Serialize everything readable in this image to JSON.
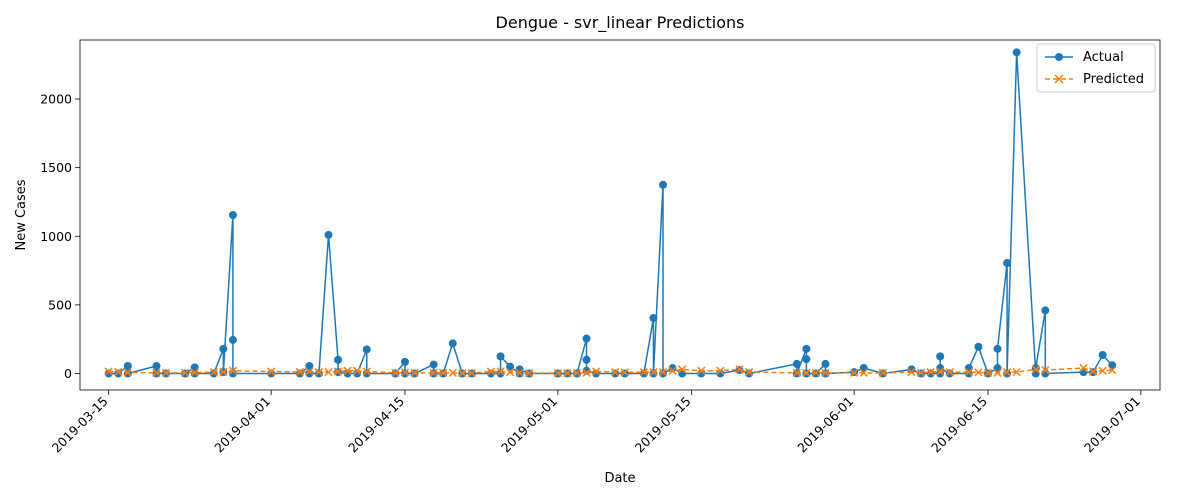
{
  "chart_data": {
    "type": "line",
    "title": "Dengue - svr_linear Predictions",
    "xlabel": "Date",
    "ylabel": "New Cases",
    "xlim": [
      "2019-03-12",
      "2019-07-03"
    ],
    "ylim": [
      -120,
      2430
    ],
    "x_ticks": [
      "2019-03-15",
      "2019-04-01",
      "2019-04-15",
      "2019-05-01",
      "2019-05-15",
      "2019-06-01",
      "2019-06-15",
      "2019-07-01"
    ],
    "y_ticks": [
      0,
      500,
      1000,
      1500,
      2000
    ],
    "legend_position": "top-right",
    "grid": false,
    "series": [
      {
        "name": "Actual",
        "color": "#1f77b4",
        "marker": "circle",
        "linestyle": "solid",
        "points": [
          [
            "2019-03-15",
            0
          ],
          [
            "2019-03-16",
            0
          ],
          [
            "2019-03-17",
            55
          ],
          [
            "2019-03-17",
            0
          ],
          [
            "2019-03-20",
            55
          ],
          [
            "2019-03-20",
            0
          ],
          [
            "2019-03-21",
            0
          ],
          [
            "2019-03-23",
            0
          ],
          [
            "2019-03-24",
            45
          ],
          [
            "2019-03-24",
            0
          ],
          [
            "2019-03-26",
            0
          ],
          [
            "2019-03-27",
            180
          ],
          [
            "2019-03-27",
            10
          ],
          [
            "2019-03-28",
            1155
          ],
          [
            "2019-03-28",
            245
          ],
          [
            "2019-03-28",
            0
          ],
          [
            "2019-04-01",
            0
          ],
          [
            "2019-04-04",
            0
          ],
          [
            "2019-04-05",
            55
          ],
          [
            "2019-04-05",
            0
          ],
          [
            "2019-04-06",
            0
          ],
          [
            "2019-04-07",
            1010
          ],
          [
            "2019-04-08",
            100
          ],
          [
            "2019-04-08",
            10
          ],
          [
            "2019-04-09",
            0
          ],
          [
            "2019-04-10",
            0
          ],
          [
            "2019-04-11",
            175
          ],
          [
            "2019-04-11",
            0
          ],
          [
            "2019-04-14",
            0
          ],
          [
            "2019-04-15",
            85
          ],
          [
            "2019-04-15",
            0
          ],
          [
            "2019-04-16",
            0
          ],
          [
            "2019-04-18",
            65
          ],
          [
            "2019-04-18",
            0
          ],
          [
            "2019-04-19",
            0
          ],
          [
            "2019-04-20",
            220
          ],
          [
            "2019-04-21",
            0
          ],
          [
            "2019-04-22",
            0
          ],
          [
            "2019-04-24",
            0
          ],
          [
            "2019-04-25",
            0
          ],
          [
            "2019-04-25",
            125
          ],
          [
            "2019-04-26",
            50
          ],
          [
            "2019-04-27",
            0
          ],
          [
            "2019-04-27",
            30
          ],
          [
            "2019-04-28",
            0
          ],
          [
            "2019-05-01",
            0
          ],
          [
            "2019-05-02",
            0
          ],
          [
            "2019-05-03",
            0
          ],
          [
            "2019-05-04",
            255
          ],
          [
            "2019-05-04",
            100
          ],
          [
            "2019-05-04",
            20
          ],
          [
            "2019-05-05",
            0
          ],
          [
            "2019-05-07",
            0
          ],
          [
            "2019-05-08",
            0
          ],
          [
            "2019-05-10",
            0
          ],
          [
            "2019-05-11",
            405
          ],
          [
            "2019-05-11",
            0
          ],
          [
            "2019-05-12",
            1375
          ],
          [
            "2019-05-12",
            0
          ],
          [
            "2019-05-13",
            40
          ],
          [
            "2019-05-14",
            0
          ],
          [
            "2019-05-16",
            0
          ],
          [
            "2019-05-18",
            0
          ],
          [
            "2019-05-20",
            25
          ],
          [
            "2019-05-21",
            0
          ],
          [
            "2019-05-26",
            70
          ],
          [
            "2019-05-26",
            0
          ],
          [
            "2019-05-27",
            180
          ],
          [
            "2019-05-27",
            105
          ],
          [
            "2019-05-27",
            0
          ],
          [
            "2019-05-28",
            0
          ],
          [
            "2019-05-29",
            70
          ],
          [
            "2019-05-29",
            0
          ],
          [
            "2019-06-01",
            10
          ],
          [
            "2019-06-02",
            40
          ],
          [
            "2019-06-04",
            0
          ],
          [
            "2019-06-07",
            30
          ],
          [
            "2019-06-08",
            0
          ],
          [
            "2019-06-09",
            0
          ],
          [
            "2019-06-10",
            0
          ],
          [
            "2019-06-10",
            125
          ],
          [
            "2019-06-10",
            40
          ],
          [
            "2019-06-11",
            0
          ],
          [
            "2019-06-13",
            0
          ],
          [
            "2019-06-13",
            40
          ],
          [
            "2019-06-14",
            195
          ],
          [
            "2019-06-15",
            0
          ],
          [
            "2019-06-16",
            40
          ],
          [
            "2019-06-16",
            180
          ],
          [
            "2019-06-17",
            805
          ],
          [
            "2019-06-17",
            0
          ],
          [
            "2019-06-18",
            2340
          ],
          [
            "2019-06-20",
            0
          ],
          [
            "2019-06-20",
            40
          ],
          [
            "2019-06-21",
            460
          ],
          [
            "2019-06-21",
            0
          ],
          [
            "2019-06-25",
            10
          ],
          [
            "2019-06-26",
            10
          ],
          [
            "2019-06-27",
            135
          ],
          [
            "2019-06-28",
            60
          ]
        ]
      },
      {
        "name": "Predicted",
        "color": "#ff7f0e",
        "marker": "x",
        "linestyle": "dashed",
        "points": [
          [
            "2019-03-15",
            15
          ],
          [
            "2019-03-16",
            12
          ],
          [
            "2019-03-17",
            8
          ],
          [
            "2019-03-20",
            5
          ],
          [
            "2019-03-21",
            5
          ],
          [
            "2019-03-23",
            5
          ],
          [
            "2019-03-24",
            8
          ],
          [
            "2019-03-26",
            10
          ],
          [
            "2019-03-27",
            12
          ],
          [
            "2019-03-28",
            20
          ],
          [
            "2019-04-01",
            15
          ],
          [
            "2019-04-04",
            12
          ],
          [
            "2019-04-05",
            15
          ],
          [
            "2019-04-06",
            10
          ],
          [
            "2019-04-07",
            10
          ],
          [
            "2019-04-08",
            15
          ],
          [
            "2019-04-09",
            20
          ],
          [
            "2019-04-10",
            20
          ],
          [
            "2019-04-11",
            15
          ],
          [
            "2019-04-14",
            5
          ],
          [
            "2019-04-15",
            8
          ],
          [
            "2019-04-16",
            5
          ],
          [
            "2019-04-18",
            5
          ],
          [
            "2019-04-19",
            5
          ],
          [
            "2019-04-20",
            5
          ],
          [
            "2019-04-21",
            3
          ],
          [
            "2019-04-22",
            3
          ],
          [
            "2019-04-24",
            15
          ],
          [
            "2019-04-25",
            15
          ],
          [
            "2019-04-26",
            10
          ],
          [
            "2019-04-27",
            5
          ],
          [
            "2019-04-28",
            3
          ],
          [
            "2019-05-01",
            3
          ],
          [
            "2019-05-02",
            3
          ],
          [
            "2019-05-03",
            5
          ],
          [
            "2019-05-04",
            5
          ],
          [
            "2019-05-05",
            15
          ],
          [
            "2019-05-07",
            10
          ],
          [
            "2019-05-08",
            8
          ],
          [
            "2019-05-10",
            10
          ],
          [
            "2019-05-11",
            10
          ],
          [
            "2019-05-12",
            10
          ],
          [
            "2019-05-13",
            20
          ],
          [
            "2019-05-14",
            30
          ],
          [
            "2019-05-16",
            20
          ],
          [
            "2019-05-18",
            20
          ],
          [
            "2019-05-20",
            30
          ],
          [
            "2019-05-21",
            10
          ],
          [
            "2019-05-26",
            5
          ],
          [
            "2019-05-27",
            5
          ],
          [
            "2019-05-28",
            5
          ],
          [
            "2019-05-29",
            5
          ],
          [
            "2019-06-01",
            5
          ],
          [
            "2019-06-02",
            5
          ],
          [
            "2019-06-04",
            5
          ],
          [
            "2019-06-07",
            10
          ],
          [
            "2019-06-08",
            5
          ],
          [
            "2019-06-09",
            10
          ],
          [
            "2019-06-10",
            15
          ],
          [
            "2019-06-11",
            10
          ],
          [
            "2019-06-13",
            10
          ],
          [
            "2019-06-14",
            8
          ],
          [
            "2019-06-15",
            5
          ],
          [
            "2019-06-16",
            5
          ],
          [
            "2019-06-17",
            10
          ],
          [
            "2019-06-18",
            10
          ],
          [
            "2019-06-20",
            30
          ],
          [
            "2019-06-21",
            25
          ],
          [
            "2019-06-25",
            40
          ],
          [
            "2019-06-26",
            15
          ],
          [
            "2019-06-27",
            20
          ],
          [
            "2019-06-28",
            25
          ]
        ]
      }
    ]
  }
}
